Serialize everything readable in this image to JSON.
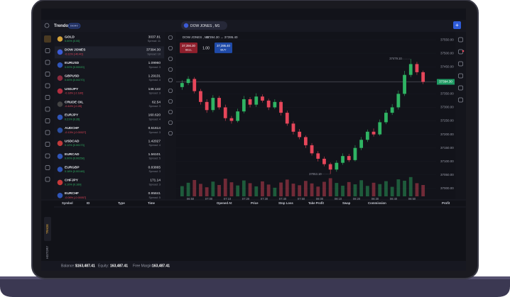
{
  "header": {
    "brand": "Trendo",
    "badge": "DEMO",
    "tab": "DOW JONES , M1"
  },
  "watchlist": [
    {
      "symbol": "GOLD",
      "price": "3037.81",
      "change": "0.00% [0.00]",
      "spread": "Spread: 11"
    },
    {
      "symbol": "DOW JONES",
      "price": "37394.30",
      "change": "-0.11% [-40.40]",
      "spread": "Spread: 10"
    },
    {
      "symbol": "EURUSD",
      "price": "1.09960",
      "change": "0.00% [0.00020]",
      "spread": "Spread: 3"
    },
    {
      "symbol": "GBPUSD",
      "price": "1.29131",
      "change": "0.00% [0.00270]",
      "spread": "Spread: 4"
    },
    {
      "symbol": "USDJPY",
      "price": "146.142",
      "change": "-0.18% [-2.180]",
      "spread": "Spread: 3"
    },
    {
      "symbol": "CRUDE OIL",
      "price": "62.54",
      "change": "-0.44% [-0.28]",
      "spread": "Spread: 3"
    },
    {
      "symbol": "EURJPY",
      "price": "160.620",
      "change": "0.21% [0.35]",
      "spread": "Spread: 4"
    },
    {
      "symbol": "AUDCHF",
      "price": "0.51614",
      "change": "-0.13% [-0.00027]",
      "spread": "Spread: 3"
    },
    {
      "symbol": "USDCAD",
      "price": "1.42027",
      "change": "0.12% [0.00173]",
      "spread": "Spread: 4"
    },
    {
      "symbol": "EURCAD",
      "price": "1.56101",
      "change": "0.00% [0.00258]",
      "spread": "Spread: 5"
    },
    {
      "symbol": "EURGBP",
      "price": "0.83865",
      "change": "0.18% [0.00148]",
      "spread": "Spread: 3"
    },
    {
      "symbol": "CHFJPY",
      "price": "171.14",
      "change": "0.10% [0.169]",
      "spread": "Spread: 3"
    },
    {
      "symbol": "EURCHF",
      "price": "0.95841",
      "change": "-0.06% [-0.00057]",
      "spread": "Spread: 5"
    }
  ],
  "trade_panel": {
    "sell_price": "37,394.30",
    "sell_label": "SELL",
    "lot": "1.00",
    "buy_price": "37,395.40",
    "buy_label": "BUY"
  },
  "chart_data": {
    "type": "candlestick",
    "title": "DOW JONES , M1",
    "subtitle": "37394.30 → 37395.40",
    "open": [
      37375,
      37390,
      37405,
      37360,
      37320,
      37290,
      37335,
      37300,
      37260,
      37250,
      37285,
      37330,
      37310,
      37340,
      37325,
      37300,
      37320,
      37280,
      37240,
      37210,
      37190,
      37160,
      37130,
      37110,
      37090,
      37070,
      37095,
      37120,
      37105,
      37150,
      37180,
      37210,
      37200,
      37245,
      37280,
      37300,
      37350,
      37420,
      37460,
      37430
    ],
    "high": [
      37400,
      37415,
      37412,
      37368,
      37330,
      37345,
      37342,
      37310,
      37268,
      37295,
      37342,
      37338,
      37352,
      37348,
      37332,
      37330,
      37326,
      37288,
      37248,
      37220,
      37196,
      37168,
      37138,
      37118,
      37096,
      37104,
      37130,
      37128,
      37160,
      37190,
      37218,
      37222,
      37255,
      37290,
      37312,
      37362,
      37435,
      37479.1,
      37468,
      37436
    ],
    "low": [
      37365,
      37382,
      37352,
      37310,
      37280,
      37282,
      37292,
      37250,
      37240,
      37244,
      37278,
      37300,
      37302,
      37318,
      37290,
      37294,
      37270,
      37232,
      37200,
      37182,
      37150,
      37122,
      37100,
      37082,
      37053.1,
      37062,
      37088,
      37098,
      37100,
      37142,
      37172,
      37192,
      37195,
      37238,
      37272,
      37292,
      37342,
      37412,
      37420,
      37386
    ],
    "close": [
      37390,
      37405,
      37360,
      37320,
      37290,
      37335,
      37300,
      37260,
      37250,
      37285,
      37330,
      37310,
      37340,
      37325,
      37300,
      37320,
      37280,
      37240,
      37210,
      37190,
      37160,
      37130,
      37110,
      37090,
      37070,
      37095,
      37120,
      37105,
      37150,
      37180,
      37210,
      37200,
      37245,
      37280,
      37300,
      37350,
      37420,
      37460,
      37430,
      37394.3
    ],
    "volume": [
      45,
      60,
      72,
      55,
      40,
      65,
      50,
      78,
      62,
      48,
      70,
      58,
      44,
      66,
      52,
      38,
      61,
      74,
      56,
      49,
      68,
      57,
      43,
      64,
      80,
      59,
      47,
      63,
      53,
      71,
      46,
      60,
      54,
      67,
      42,
      75,
      69,
      85,
      58,
      50
    ],
    "volume_ylim": [
      0,
      100
    ],
    "up_color": "#2fb463",
    "down_color": "#e6465a",
    "ylim": [
      36971,
      37579
    ],
    "yticks": [
      {
        "value": 37550,
        "label": "37550.00"
      },
      {
        "value": 37500,
        "label": "37500.00"
      },
      {
        "value": 37450,
        "label": "37450.00"
      },
      {
        "value": 37400,
        "label": "37400.00"
      },
      {
        "value": 37350,
        "label": "37350.00"
      },
      {
        "value": 37300,
        "label": "37300.00"
      },
      {
        "value": 37250,
        "label": "37250.00"
      },
      {
        "value": 37200,
        "label": "37200.00"
      },
      {
        "value": 37150,
        "label": "37150.00"
      },
      {
        "value": 37100,
        "label": "37100.00"
      },
      {
        "value": 37050,
        "label": "37050.00"
      },
      {
        "value": 37000,
        "label": "37000.00"
      }
    ],
    "current_price": {
      "value": 37394.3,
      "label": "37394.30"
    },
    "annotations": [
      {
        "value": 37479.1,
        "label": "37479.10"
      },
      {
        "value": 37053.1,
        "label": "37053.10"
      }
    ],
    "x_labels": [
      "06:50",
      "07:00",
      "07:10",
      "07:20",
      "07:30",
      "07:40",
      "07:50",
      "08:00",
      "08:10",
      "08:20",
      "08:30",
      "08:40",
      "08:50"
    ]
  },
  "positions_table": {
    "columns": [
      "Symbol",
      "ID",
      "Type",
      "Time",
      "Opened At",
      "Price",
      "Stop Loss",
      "Take Profit",
      "Swap",
      "Commission",
      "Profit"
    ]
  },
  "side_tabs": [
    "TRADE",
    "HISTORY"
  ],
  "account": {
    "balance_label": "Balance:",
    "balance": "$163,487.41",
    "equity_label": "Equity:",
    "equity": "163,487.41",
    "margin_label": "Free Margin:",
    "margin": "163,487.41"
  }
}
